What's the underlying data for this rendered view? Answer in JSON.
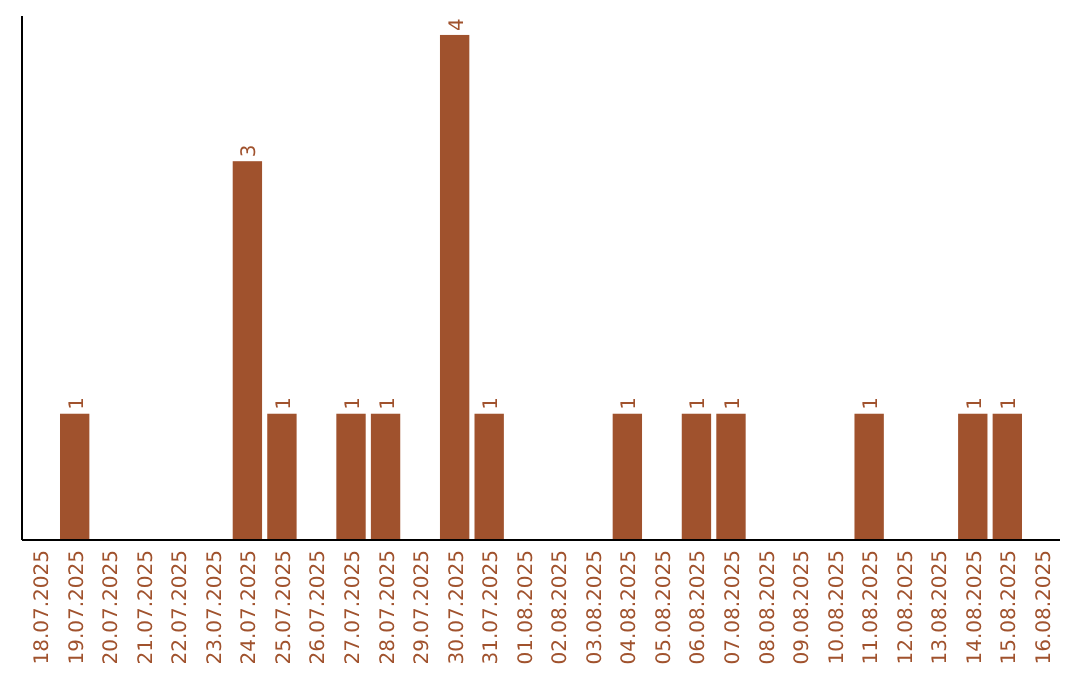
{
  "chart_data": {
    "type": "bar",
    "categories": [
      "18.07.2025",
      "19.07.2025",
      "20.07.2025",
      "21.07.2025",
      "22.07.2025",
      "23.07.2025",
      "24.07.2025",
      "25.07.2025",
      "26.07.2025",
      "27.07.2025",
      "28.07.2025",
      "29.07.2025",
      "30.07.2025",
      "31.07.2025",
      "01.08.2025",
      "02.08.2025",
      "03.08.2025",
      "04.08.2025",
      "05.08.2025",
      "06.08.2025",
      "07.08.2025",
      "08.08.2025",
      "09.08.2025",
      "10.08.2025",
      "11.08.2025",
      "12.08.2025",
      "13.08.2025",
      "14.08.2025",
      "15.08.2025",
      "16.08.2025"
    ],
    "values": [
      0,
      1,
      0,
      0,
      0,
      0,
      3,
      1,
      0,
      1,
      1,
      0,
      4,
      1,
      0,
      0,
      0,
      1,
      0,
      1,
      1,
      0,
      0,
      0,
      1,
      0,
      0,
      1,
      1,
      0
    ],
    "value_labels": [
      null,
      "1",
      null,
      null,
      null,
      null,
      "3",
      "1",
      null,
      "1",
      "1",
      null,
      "4",
      "1",
      null,
      null,
      null,
      "1",
      null,
      "1",
      "1",
      null,
      null,
      null,
      "1",
      null,
      null,
      "1",
      "1",
      null
    ],
    "color": "#a0522d",
    "ylim": [
      0,
      4.15
    ],
    "tick_labels": "x"
  }
}
